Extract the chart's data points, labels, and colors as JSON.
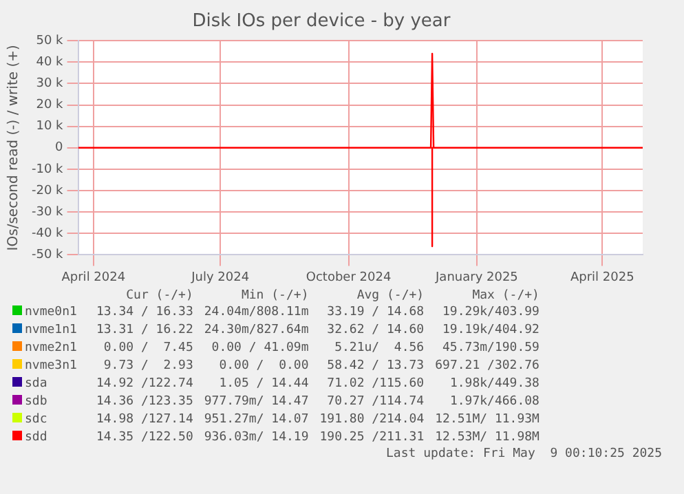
{
  "chart_data": {
    "type": "line",
    "title": "Disk IOs per device - by year",
    "ylabel": "IOs/second read (-) / write (+)",
    "x": [
      "2024-03-21",
      "2024-11-29",
      "2024-11-30",
      "2024-12-01",
      "2025-04-30"
    ],
    "xlim": [
      "2024-03-21",
      "2025-04-30"
    ],
    "xticks": [
      {
        "value": "2024-04-01",
        "label": "April 2024"
      },
      {
        "value": "2024-07-01",
        "label": "July 2024"
      },
      {
        "value": "2024-10-01",
        "label": "October 2024"
      },
      {
        "value": "2025-01-01",
        "label": "January 2025"
      },
      {
        "value": "2025-04-01",
        "label": "April 2025"
      }
    ],
    "ylim": [
      -50000,
      50000
    ],
    "yticks": [
      {
        "value": -50000,
        "label": "-50 k"
      },
      {
        "value": -40000,
        "label": "-40 k"
      },
      {
        "value": -30000,
        "label": "-30 k"
      },
      {
        "value": -20000,
        "label": "-20 k"
      },
      {
        "value": -10000,
        "label": "-10 k"
      },
      0,
      {
        "value": 10000,
        "label": "10 k"
      },
      {
        "value": 20000,
        "label": "20 k"
      },
      {
        "value": 30000,
        "label": "30 k"
      },
      {
        "value": 40000,
        "label": "40 k"
      },
      {
        "value": 50000,
        "label": "50 k"
      }
    ],
    "grid": true,
    "legend": "bottom",
    "marker": "none",
    "line_style": "solid",
    "series": [
      {
        "name": "nvme0n1",
        "color": "#00cc00",
        "values": [
          null,
          null,
          null,
          null,
          null
        ]
      },
      {
        "name": "nvme1n1",
        "color": "#0066b3",
        "values": [
          null,
          null,
          null,
          null,
          null
        ]
      },
      {
        "name": "nvme2n1",
        "color": "#ff8000",
        "values": [
          null,
          null,
          null,
          null,
          null
        ]
      },
      {
        "name": "nvme3n1",
        "color": "#ffcc00",
        "values": [
          null,
          null,
          null,
          null,
          null
        ]
      },
      {
        "name": "sda",
        "color": "#330099",
        "values": [
          null,
          null,
          null,
          null,
          null
        ]
      },
      {
        "name": "sdb",
        "color": "#990099",
        "values": [
          null,
          null,
          null,
          null,
          null
        ]
      },
      {
        "name": "sdc",
        "color": "#ccff00",
        "values": [
          null,
          null,
          null,
          null,
          null
        ]
      },
      {
        "name": "sdd",
        "color": "#ff0000",
        "values": [
          0,
          0,
          44000,
          0,
          0
        ]
      },
      {
        "color": "#ff0000",
        "x": [
          "2024-11-30",
          "2024-11-30"
        ],
        "values": [
          0,
          -46000
        ]
      }
    ],
    "annotations": [
      "Cur (-/+)",
      "Min (-/+)",
      "Avg (-/+)",
      "Max (-/+)",
      "13.34 / 16.33",
      "24.04m/808.11m",
      "33.19 / 14.68",
      "19.29k/403.99",
      "13.31 / 16.22",
      "24.30m/827.64m",
      "32.62 / 14.60",
      "19.19k/404.92",
      "0.00 /  7.45",
      "0.00 / 41.09m",
      "5.21u/  4.56",
      "45.73m/190.59",
      "9.73 /  2.93",
      "0.00 /  0.00",
      "58.42 / 13.73",
      "697.21 /302.76",
      "14.92 /122.74",
      "1.05 / 14.44",
      "71.02 /115.60",
      "1.98k/449.38",
      "14.36 /123.35",
      "977.79m/ 14.47",
      "70.27 /114.74",
      "1.97k/466.08",
      "14.98 /127.14",
      "951.27m/ 14.07",
      "191.80 /214.04",
      "12.51M/ 11.93M",
      "14.35 /122.50",
      "936.03m/ 14.19",
      "190.25 /211.31",
      "12.53M/ 11.98M",
      "Last update: Fri May  9 00:10:25 2025"
    ]
  }
}
